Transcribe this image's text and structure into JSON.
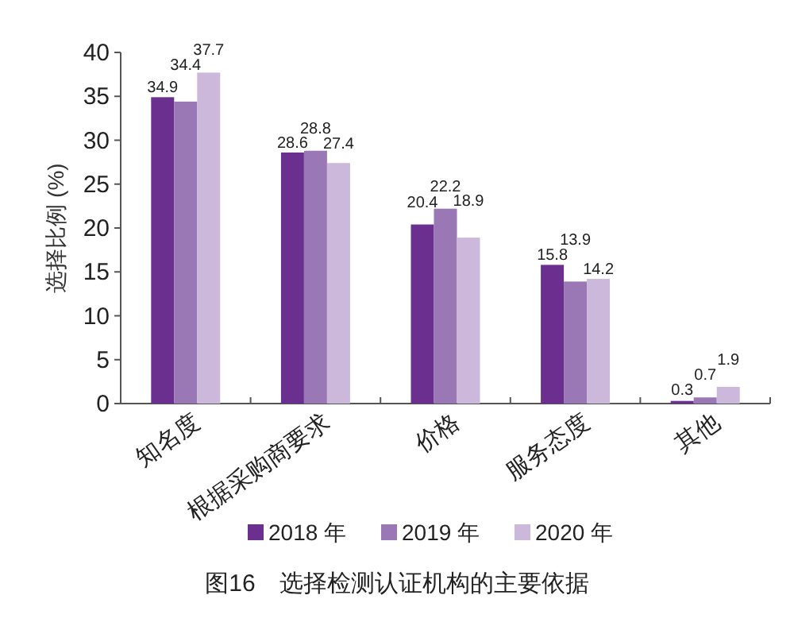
{
  "chart_data": {
    "type": "bar",
    "title": "图16　选择检测认证机构的主要依据",
    "ylabel": "选择比例 (%)",
    "categories": [
      "知名度",
      "根据采购商要求",
      "价格",
      "服务态度",
      "其他"
    ],
    "series": [
      {
        "name": "2018 年",
        "color": "#6b2f8f",
        "values": [
          34.9,
          28.6,
          20.4,
          15.8,
          0.3
        ]
      },
      {
        "name": "2019 年",
        "color": "#9a77b5",
        "values": [
          34.4,
          28.8,
          22.2,
          13.9,
          0.7
        ]
      },
      {
        "name": "2020 年",
        "color": "#cbb8da",
        "values": [
          37.7,
          27.4,
          18.9,
          14.2,
          1.9
        ]
      }
    ],
    "ylim": [
      0,
      40
    ],
    "yticks": [
      0,
      5,
      10,
      15,
      20,
      25,
      30,
      35,
      40
    ],
    "data_labels": true,
    "legend": "bottom",
    "grid": false
  }
}
